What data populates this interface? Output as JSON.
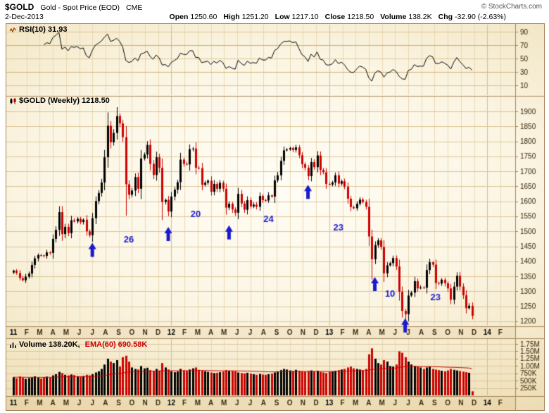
{
  "header": {
    "symbol": "$GOLD",
    "name": "Gold - Spot Price (EOD)",
    "exchange": "CME",
    "copyright": "© StockCharts.com",
    "date": "2-Dec-2013",
    "stats": [
      {
        "label": "Open",
        "value": "1250.60"
      },
      {
        "label": "High",
        "value": "1251.20"
      },
      {
        "label": "Low",
        "value": "1217.10"
      },
      {
        "label": "Close",
        "value": "1218.50"
      },
      {
        "label": "Volume",
        "value": "138.2K"
      },
      {
        "label": "Chg",
        "value": "-32.90 (-2.63%)"
      }
    ]
  },
  "legends": {
    "rsi": "RSI(10) 31.93",
    "price": "$GOLD (Weekly) 1218.50",
    "volume": "Volume 138.20K,",
    "volume_ema": "EMA(60) 690.58K"
  },
  "chart_data": {
    "type": "candlestick",
    "title": "$GOLD Gold - Spot Price (EOD) CME",
    "timeframe": "weekly",
    "x_start": "Jan 2011",
    "x_end": "2-Dec-2013",
    "panels": [
      "RSI(10)",
      "price",
      "volume"
    ],
    "price_axis": {
      "min": 1200,
      "max": 1900,
      "step": 50,
      "ticks": [
        1900,
        1850,
        1800,
        1750,
        1700,
        1650,
        1600,
        1550,
        1500,
        1450,
        1400,
        1350,
        1300,
        1250,
        1200
      ]
    },
    "rsi_axis": {
      "ticks": [
        90,
        70,
        50,
        30,
        10
      ],
      "last": 31.93
    },
    "volume_axis": {
      "ticks": [
        {
          "label": "1.75M",
          "k": 1750
        },
        {
          "label": "1.50M",
          "k": 1500
        },
        {
          "label": "1.25M",
          "k": 1250
        },
        {
          "label": "1.00M",
          "k": 1000
        },
        {
          "label": "750K",
          "k": 750
        },
        {
          "label": "500K",
          "k": 500
        },
        {
          "label": "250K",
          "k": 250
        }
      ],
      "last_k": 138.2,
      "ema60_k": 690.58
    },
    "x_ticks": [
      {
        "l": "11",
        "y": true
      },
      {
        "l": "F"
      },
      {
        "l": "M"
      },
      {
        "l": "A"
      },
      {
        "l": "M"
      },
      {
        "l": "J"
      },
      {
        "l": "J"
      },
      {
        "l": "A"
      },
      {
        "l": "S"
      },
      {
        "l": "O"
      },
      {
        "l": "N"
      },
      {
        "l": "D"
      },
      {
        "l": "12",
        "y": true
      },
      {
        "l": "F"
      },
      {
        "l": "M"
      },
      {
        "l": "A"
      },
      {
        "l": "M"
      },
      {
        "l": "J"
      },
      {
        "l": "J"
      },
      {
        "l": "A"
      },
      {
        "l": "S"
      },
      {
        "l": "O"
      },
      {
        "l": "N"
      },
      {
        "l": "D"
      },
      {
        "l": "13",
        "y": true
      },
      {
        "l": "F"
      },
      {
        "l": "M"
      },
      {
        "l": "A"
      },
      {
        "l": "M"
      },
      {
        "l": "J"
      },
      {
        "l": "J"
      },
      {
        "l": "A"
      },
      {
        "l": "S"
      },
      {
        "l": "O"
      },
      {
        "l": "N"
      },
      {
        "l": "D"
      },
      {
        "l": "14",
        "y": true
      },
      {
        "l": "F"
      }
    ],
    "weekly_closes": [
      1369,
      1361,
      1344,
      1337,
      1349,
      1359,
      1388,
      1410,
      1421,
      1420,
      1418,
      1430,
      1428,
      1475,
      1505,
      1564,
      1491,
      1515,
      1494,
      1537,
      1533,
      1542,
      1531,
      1539,
      1500,
      1487,
      1544,
      1601,
      1628,
      1663,
      1747,
      1852,
      1797,
      1828,
      1884,
      1860,
      1814,
      1657,
      1622,
      1636,
      1681,
      1642,
      1743,
      1756,
      1788,
      1725,
      1688,
      1747,
      1712,
      1598,
      1605,
      1566,
      1616,
      1639,
      1664,
      1739,
      1725,
      1723,
      1774,
      1776,
      1712,
      1711,
      1655,
      1662,
      1669,
      1632,
      1658,
      1642,
      1662,
      1642,
      1579,
      1592,
      1573,
      1562,
      1625,
      1593,
      1572,
      1604,
      1583,
      1589,
      1582,
      1618,
      1604,
      1603,
      1620,
      1616,
      1670,
      1687,
      1735,
      1770,
      1773,
      1778,
      1771,
      1780,
      1754,
      1724,
      1712,
      1684,
      1731,
      1714,
      1753,
      1705,
      1697,
      1658,
      1656,
      1663,
      1687,
      1659,
      1667,
      1649,
      1609,
      1581,
      1577,
      1592,
      1606,
      1598,
      1582,
      1483,
      1407,
      1454,
      1470,
      1448,
      1360,
      1387,
      1394,
      1411,
      1383,
      1299,
      1235,
      1224,
      1286,
      1296,
      1334,
      1310,
      1313,
      1312,
      1371,
      1397,
      1389,
      1328,
      1326,
      1339,
      1327,
      1310,
      1272,
      1316,
      1352,
      1316,
      1287,
      1244,
      1252,
      1218.5
    ],
    "weekly_volumes_k": [
      620,
      580,
      640,
      600,
      560,
      590,
      610,
      650,
      600,
      570,
      620,
      640,
      610,
      680,
      720,
      800,
      760,
      700,
      680,
      710,
      690,
      650,
      640,
      660,
      700,
      680,
      720,
      780,
      820,
      900,
      1050,
      1250,
      1150,
      1100,
      1200,
      980,
      1300,
      1350,
      1150,
      950,
      900,
      880,
      1000,
      920,
      940,
      860,
      840,
      900,
      850,
      1100,
      950,
      880,
      820,
      790,
      810,
      900,
      850,
      830,
      880,
      920,
      950,
      870,
      840,
      820,
      800,
      780,
      760,
      770,
      790,
      810,
      860,
      840,
      830,
      820,
      780,
      760,
      750,
      770,
      740,
      720,
      700,
      730,
      710,
      700,
      720,
      740,
      780,
      820,
      860,
      900,
      880,
      850,
      830,
      870,
      840,
      820,
      810,
      830,
      850,
      820,
      840,
      800,
      780,
      760,
      800,
      820,
      840,
      860,
      880,
      900,
      950,
      980,
      920,
      900,
      880,
      860,
      900,
      1400,
      1600,
      1250,
      1100,
      1050,
      1200,
      1150,
      1000,
      980,
      1050,
      1500,
      1450,
      1300,
      1150,
      1050,
      1000,
      980,
      950,
      900,
      950,
      980,
      900,
      880,
      860,
      840,
      820,
      850,
      900,
      870,
      850,
      830,
      810,
      790,
      770,
      138.2
    ],
    "wick_extra_high": {
      "31": 18,
      "34": 14
    },
    "wick_extra_low": {
      "37": 55,
      "49": 25,
      "118": 42,
      "129": 32
    },
    "annotations": {
      "arrows": [
        {
          "week": 26,
          "price": 1462
        },
        {
          "week": 51,
          "price": 1515
        },
        {
          "week": 71,
          "price": 1520
        },
        {
          "week": 97,
          "price": 1655
        },
        {
          "week": 119,
          "price": 1348
        },
        {
          "week": 129,
          "price": 1210
        }
      ],
      "labels": [
        {
          "text": "26",
          "week": 38,
          "price": 1472
        },
        {
          "text": "20",
          "week": 60,
          "price": 1558
        },
        {
          "text": "24",
          "week": 84,
          "price": 1540
        },
        {
          "text": "23",
          "week": 107,
          "price": 1512
        },
        {
          "text": "10",
          "week": 124,
          "price": 1292
        },
        {
          "text": "23",
          "week": 139,
          "price": 1280
        }
      ]
    },
    "colors": {
      "up": "#000000",
      "down": "#cc0000",
      "annotation": "#1a1acc",
      "grid": "#ddc598",
      "grid_dark": "#cbb077",
      "border": "#a5845a",
      "axis_text": "#33230a",
      "rsi_line": "#000000",
      "volume_ema": "#cc0000"
    }
  }
}
